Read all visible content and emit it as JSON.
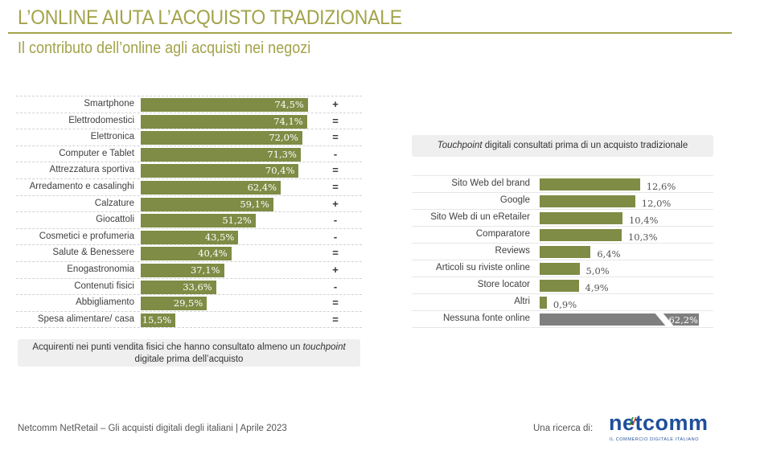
{
  "header": {
    "title": "L’ONLINE AIUTA L’ACQUISTO TRADIZIONALE",
    "subtitle": "Il contributo dell’online agli acquisti nei negozi"
  },
  "colors": {
    "accent": "#a3a34a",
    "bar_green": "#7e8c45",
    "bar_grey": "#7f7f7f",
    "box_bg": "#efefef",
    "logo_blue": "#1f4f9b"
  },
  "chart_data": [
    {
      "type": "bar",
      "orientation": "horizontal",
      "title": "",
      "categories": [
        "Smartphone",
        "Elettrodomestici",
        "Elettronica",
        "Computer e Tablet",
        "Attrezzatura sportiva",
        "Arredamento e casalinghi",
        "Calzature",
        "Giocattoli",
        "Cosmetici e profumeria",
        "Salute & Benessere",
        "Enogastronomia",
        "Contenuti fisici",
        "Abbigliamento",
        "Spesa alimentare/ casa"
      ],
      "values": [
        74.5,
        74.1,
        72.0,
        71.3,
        70.4,
        62.4,
        59.1,
        51.2,
        43.5,
        40.4,
        37.1,
        33.6,
        29.5,
        15.5
      ],
      "value_labels": [
        "74,5%",
        "74,1%",
        "72,0%",
        "71,3%",
        "70,4%",
        "62,4%",
        "59,1%",
        "51,2%",
        "43,5%",
        "40,4%",
        "37,1%",
        "33,6%",
        "29,5%",
        "15,5%"
      ],
      "trend": [
        "+",
        "=",
        "=",
        "-",
        "=",
        "=",
        "+",
        "-",
        "-",
        "=",
        "+",
        "-",
        "=",
        "="
      ],
      "unit": "%",
      "xlim": [
        0,
        100
      ],
      "caption_main": "Acquirenti nei punti vendita fisici che hanno consultato almeno un ",
      "caption_italic": "touchpoint",
      "caption_end": "digitale prima dell’acquisto"
    },
    {
      "type": "bar",
      "orientation": "horizontal",
      "title_italic": "Touchpoint",
      "title": " digitali consultati prima di un acquisto tradizionale",
      "categories": [
        "Sito Web del brand",
        "Google",
        "Sito Web di un eRetailer",
        "Comparatore",
        "Reviews",
        "Articoli su riviste online",
        "Store locator",
        "Altri",
        "Nessuna fonte online"
      ],
      "values": [
        12.6,
        12.0,
        10.4,
        10.3,
        6.4,
        5.0,
        4.9,
        0.9,
        62.2
      ],
      "value_labels": [
        "12,6%",
        "12,0%",
        "10,4%",
        "10,3%",
        "6,4%",
        "5,0%",
        "4,9%",
        "0,9%",
        "62,2%"
      ],
      "broken_axis": [
        false,
        false,
        false,
        false,
        false,
        false,
        false,
        false,
        true
      ],
      "unit": "%"
    }
  ],
  "footer": {
    "source": "Netcomm NetRetail – Gli acquisti digitali degli italiani | Aprile 2023",
    "research_label": "Una ricerca di:",
    "logo_name": "netcomm",
    "logo_tagline": "IL COMMERCIO DIGITALE ITALIANO"
  }
}
